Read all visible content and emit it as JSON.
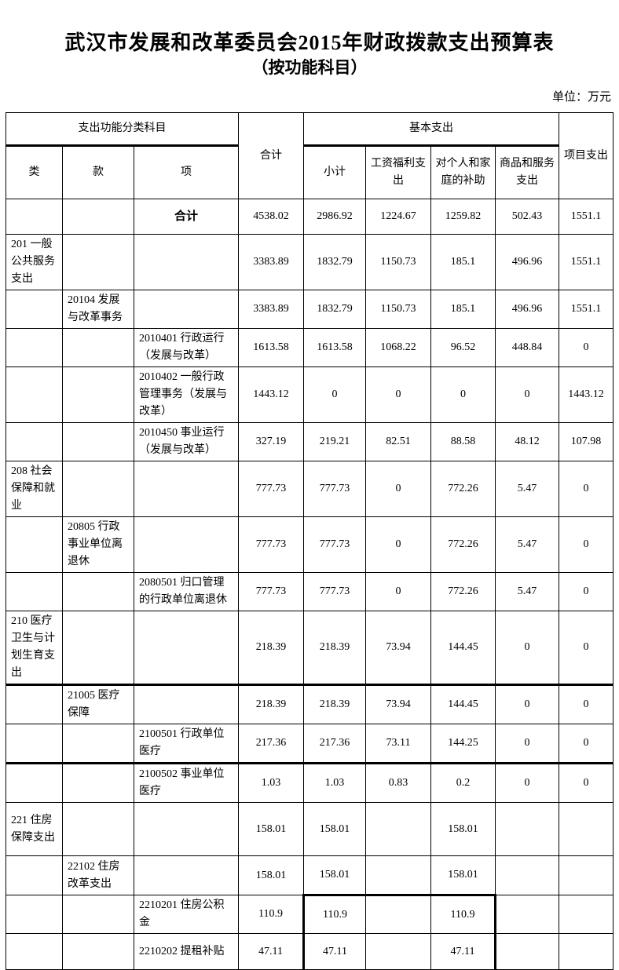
{
  "title": "武汉市发展和改革委员会2015年财政拨款支出预算表",
  "subtitle": "（按功能科目）",
  "unit_label": "单位：万元",
  "table": {
    "header_row1": [
      {
        "text": "支出功能分类科目",
        "colspan": 3,
        "rowspan": 1,
        "cls": "bb-thick"
      },
      {
        "text": "合计",
        "colspan": 1,
        "rowspan": 2
      },
      {
        "text": "基本支出",
        "colspan": 4,
        "rowspan": 1,
        "cls": "bb-thick"
      },
      {
        "text": "项目支出",
        "colspan": 1,
        "rowspan": 2
      }
    ],
    "header_row2": [
      {
        "text": "类"
      },
      {
        "text": "款"
      },
      {
        "text": "项"
      },
      {
        "text": "小计"
      },
      {
        "text": "工资福利支出"
      },
      {
        "text": "对个人和家庭的补助"
      },
      {
        "text": "商品和服务支出"
      }
    ],
    "rows": [
      {
        "cells": [
          "",
          "",
          {
            "text": "合计",
            "cls": "bold"
          },
          "4538.02",
          "2986.92",
          "1224.67",
          "1259.82",
          "502.43",
          "1551.1"
        ]
      },
      {
        "cells": [
          "201 一般公共服务支出",
          "",
          "",
          "3383.89",
          "1832.79",
          "1150.73",
          "185.1",
          "496.96",
          "1551.1"
        ]
      },
      {
        "cells": [
          "",
          "20104 发展与改革事务",
          "",
          "3383.89",
          "1832.79",
          "1150.73",
          "185.1",
          "496.96",
          "1551.1"
        ]
      },
      {
        "cells": [
          "",
          "",
          "2010401 行政运行（发展与改革）",
          "1613.58",
          "1613.58",
          "1068.22",
          "96.52",
          "448.84",
          "0"
        ]
      },
      {
        "cells": [
          "",
          "",
          "2010402 一般行政管理事务（发展与改革）",
          "1443.12",
          "0",
          "0",
          "0",
          "0",
          "1443.12"
        ]
      },
      {
        "cells": [
          "",
          "",
          "2010450 事业运行（发展与改革）",
          "327.19",
          "219.21",
          "82.51",
          "88.58",
          "48.12",
          "107.98"
        ]
      },
      {
        "cells": [
          "208 社会保障和就业",
          "",
          "",
          "777.73",
          "777.73",
          "0",
          "772.26",
          "5.47",
          "0"
        ]
      },
      {
        "cells": [
          "",
          "20805 行政事业单位离退休",
          "",
          "777.73",
          "777.73",
          "0",
          "772.26",
          "5.47",
          "0"
        ]
      },
      {
        "cells": [
          "",
          "",
          "2080501 归口管理的行政单位离退休",
          "777.73",
          "777.73",
          "0",
          "772.26",
          "5.47",
          "0"
        ]
      },
      {
        "cells": [
          "210 医疗卫生与计划生育支出",
          "",
          "",
          "218.39",
          "218.39",
          "73.94",
          "144.45",
          "0",
          "0"
        ]
      },
      {
        "cls": "bt-thick",
        "cells": [
          "",
          "21005 医疗保障",
          "",
          "218.39",
          "218.39",
          "73.94",
          "144.45",
          "0",
          "0"
        ]
      },
      {
        "cells": [
          "",
          "",
          "2100501 行政单位医疗",
          "217.36",
          "217.36",
          "73.11",
          "144.25",
          "0",
          "0"
        ]
      },
      {
        "cls": "bt-thick",
        "cells": [
          "",
          "",
          "2100502 事业单位医疗",
          "1.03",
          "1.03",
          "0.83",
          "0.2",
          "0",
          "0"
        ]
      },
      {
        "cells": [
          "221 住房保障支出",
          "",
          "",
          "158.01",
          "158.01",
          "",
          "158.01",
          "",
          ""
        ]
      },
      {
        "cells": [
          "",
          "22102 住房改革支出",
          "",
          "158.01",
          "158.01",
          "",
          "158.01",
          "",
          ""
        ]
      },
      {
        "cells": [
          "",
          "",
          "2210201 住房公积金",
          "110.9",
          {
            "text": "110.9",
            "cls": "bt-thick bl-thick"
          },
          {
            "text": "",
            "cls": "bt-thick"
          },
          {
            "text": "110.9",
            "cls": "bt-thick br-thick"
          },
          "",
          ""
        ]
      },
      {
        "cells": [
          "",
          "",
          "2210202 提租补贴",
          "47.11",
          {
            "text": "47.11",
            "cls": "bl-thick"
          },
          "",
          {
            "text": "47.11",
            "cls": "br-thick"
          },
          "",
          ""
        ]
      }
    ]
  }
}
